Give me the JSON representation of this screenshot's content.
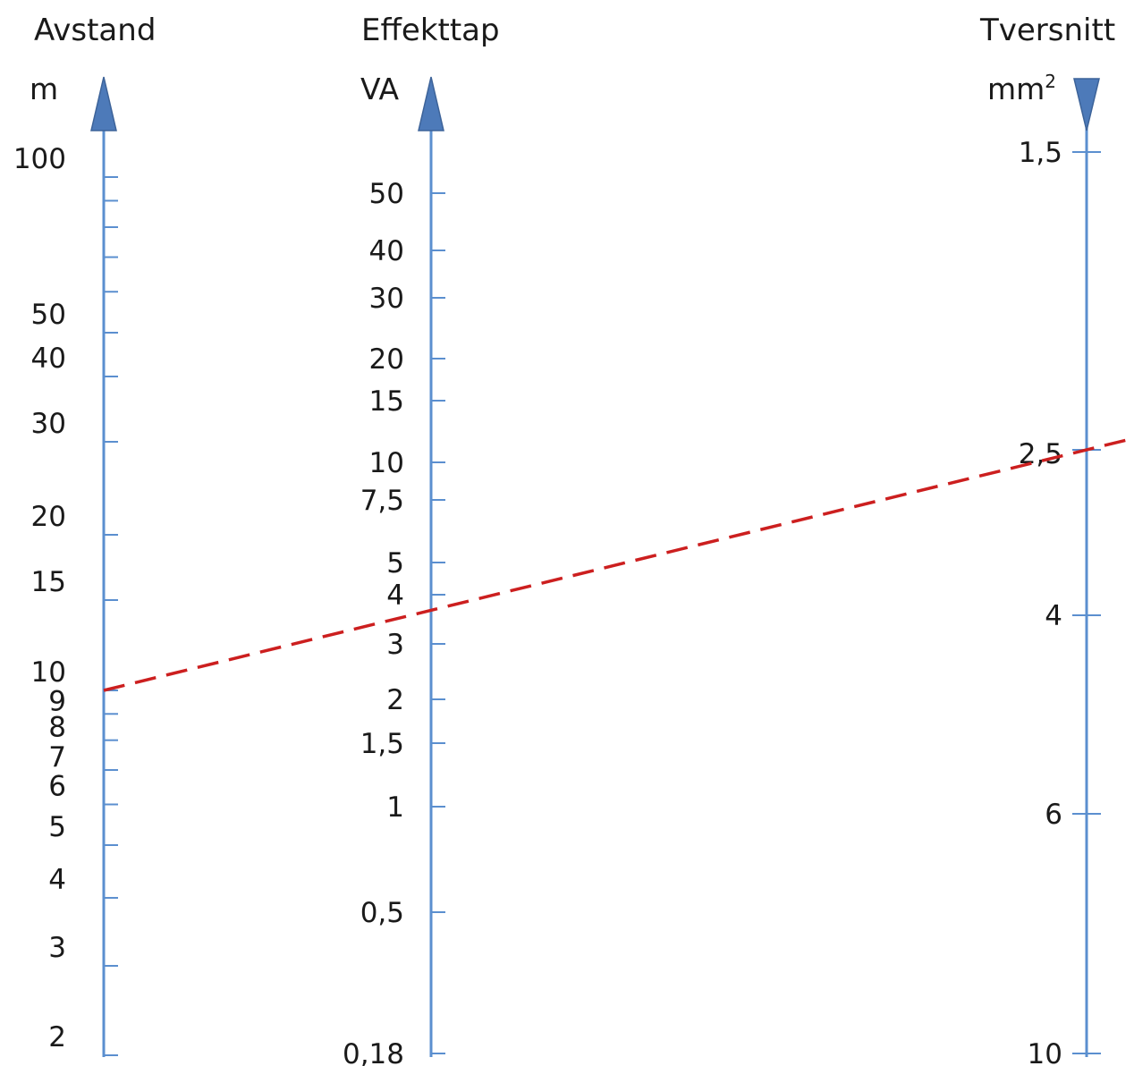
{
  "axes": {
    "distance": {
      "title": "Avstand",
      "unit": "m",
      "ticks": [
        {
          "value": 100,
          "label": "100"
        },
        {
          "value": 90,
          "label": ""
        },
        {
          "value": 80,
          "label": ""
        },
        {
          "value": 70,
          "label": ""
        },
        {
          "value": 60,
          "label": ""
        },
        {
          "value": 50,
          "label": "50"
        },
        {
          "value": 40,
          "label": "40"
        },
        {
          "value": 30,
          "label": "30"
        },
        {
          "value": 20,
          "label": "20"
        },
        {
          "value": 15,
          "label": "15"
        },
        {
          "value": 10,
          "label": "10"
        },
        {
          "value": 9,
          "label": "9"
        },
        {
          "value": 8,
          "label": "8"
        },
        {
          "value": 7,
          "label": "7"
        },
        {
          "value": 6,
          "label": "6"
        },
        {
          "value": 5,
          "label": "5"
        },
        {
          "value": 4,
          "label": "4"
        },
        {
          "value": 3,
          "label": "3"
        },
        {
          "value": 2,
          "label": "2"
        }
      ]
    },
    "power_loss": {
      "title": "Effekttap",
      "unit": "VA",
      "ticks": [
        {
          "value": 50,
          "label": "50"
        },
        {
          "value": 40,
          "label": "40"
        },
        {
          "value": 30,
          "label": "30"
        },
        {
          "value": 20,
          "label": "20"
        },
        {
          "value": 15,
          "label": "15"
        },
        {
          "value": 10,
          "label": "10"
        },
        {
          "value": 7.5,
          "label": "7,5"
        },
        {
          "value": 5,
          "label": "5"
        },
        {
          "value": 4,
          "label": "4"
        },
        {
          "value": 3,
          "label": "3"
        },
        {
          "value": 2,
          "label": "2"
        },
        {
          "value": 1.5,
          "label": "1,5"
        },
        {
          "value": 1,
          "label": "1"
        },
        {
          "value": 0.5,
          "label": "0,5"
        },
        {
          "value": 0.18,
          "label": "0,18"
        }
      ]
    },
    "cross_section": {
      "title": "Tversnitt",
      "unit": "mm",
      "unit_sup": "2",
      "ticks": [
        {
          "value": 1.5,
          "label": "1,5"
        },
        {
          "value": 2.5,
          "label": "2,5"
        },
        {
          "value": 4,
          "label": "4"
        },
        {
          "value": 6,
          "label": "6"
        },
        {
          "value": 10,
          "label": "10"
        }
      ]
    }
  },
  "reading_line": {
    "distance": 10,
    "power_loss": 3.5,
    "cross_section": 2.5
  },
  "colors": {
    "axis": "#5b8fcf",
    "arrow": "#4d7ab9",
    "reading_line": "#cc1f1f"
  }
}
